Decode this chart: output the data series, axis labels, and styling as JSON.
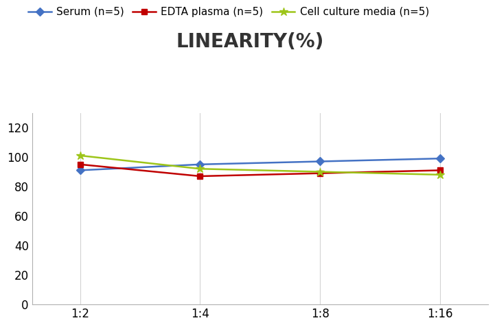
{
  "title": "LINEARITY(%)",
  "title_fontsize": 20,
  "title_fontweight": "bold",
  "x_labels": [
    "1:2",
    "1:4",
    "1:8",
    "1:16"
  ],
  "x_values": [
    0,
    1,
    2,
    3
  ],
  "series": [
    {
      "label": "Serum (n=5)",
      "values": [
        91,
        95,
        97,
        99
      ],
      "color": "#4472C4",
      "marker": "D",
      "markersize": 6,
      "linewidth": 1.8
    },
    {
      "label": "EDTA plasma (n=5)",
      "values": [
        95,
        87,
        89,
        91
      ],
      "color": "#C00000",
      "marker": "s",
      "markersize": 6,
      "linewidth": 1.8
    },
    {
      "label": "Cell culture media (n=5)",
      "values": [
        101,
        92,
        90,
        88
      ],
      "color": "#9DC519",
      "marker": "*",
      "markersize": 9,
      "linewidth": 1.8
    }
  ],
  "ylim": [
    0,
    130
  ],
  "yticks": [
    0,
    20,
    40,
    60,
    80,
    100,
    120
  ],
  "background_color": "#ffffff",
  "grid_color": "#d3d3d3",
  "legend_fontsize": 11,
  "axis_fontsize": 12,
  "xlim": [
    -0.4,
    3.4
  ]
}
